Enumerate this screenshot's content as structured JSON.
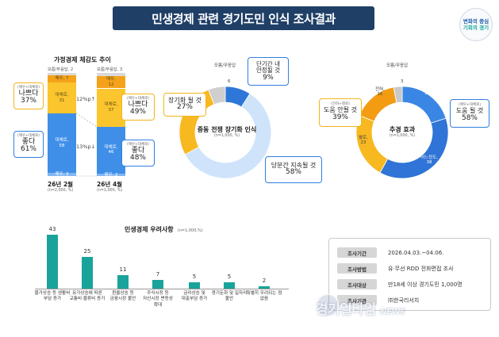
{
  "title": "민생경제 관련 경기도민 인식 조사결과",
  "brand": {
    "line1": "변화의 중심",
    "line2": "기회의 경기"
  },
  "household": {
    "title": "가정경제 체감도 추이",
    "bars": [
      {
        "period": "26년 2월",
        "n": "(n=2,000, %)",
        "top_label": "모름/무응답, 2",
        "segments": [
          {
            "name": "매우, 7",
            "value": 7,
            "color": "#f5a21b"
          },
          {
            "name": "대체로, 31",
            "value": 31,
            "color": "#fbc52e"
          },
          {
            "name": "대체로, 58",
            "value": 58,
            "color": "#3f8fe8"
          },
          {
            "name": "매우, 3",
            "value": 3,
            "color": "#7fb6f2"
          }
        ]
      },
      {
        "period": "26년 4월",
        "n": "(n=1,000, %)",
        "top_label": "모름/무응답, 3",
        "segments": [
          {
            "name": "매우, 12",
            "value": 12,
            "color": "#f5a21b"
          },
          {
            "name": "대체로, 37",
            "value": 37,
            "color": "#fbc52e"
          },
          {
            "name": "대체로, 46",
            "value": 46,
            "color": "#3f8fe8"
          },
          {
            "name": "매우, 2",
            "value": 2,
            "color": "#7fb6f2"
          }
        ]
      }
    ],
    "change_bad": "12%p↑",
    "change_good": "13%p↓",
    "callouts": {
      "feb_bad": {
        "note": "(매우+대체로)",
        "label": "나쁘다",
        "value": "37%"
      },
      "feb_good": {
        "note": "(매우+대체로)",
        "label": "좋다",
        "value": "61%"
      },
      "apr_bad": {
        "note": "(매우+대체로)",
        "label": "나쁘다",
        "value": "49%"
      },
      "apr_good": {
        "note": "(매우+대체로)",
        "label": "좋다",
        "value": "48%"
      }
    }
  },
  "shock": {
    "title": "중동 전쟁 장기화 인식",
    "n": "(n=1,000, %)",
    "dk_label": "모름/무응답",
    "dk_value": "6",
    "callouts": {
      "short": {
        "label": "단기간 내\n안정될 것",
        "value": "9%"
      },
      "long": {
        "label": "장기화 될 것",
        "value": "27%"
      },
      "cont": {
        "label": "당분간 지속될 것",
        "value": "58%"
      }
    }
  },
  "stimulus": {
    "title": "추경 효과",
    "n": "(n=1,000, %)",
    "dk_label": "모름/무응답",
    "dk_value": "3",
    "ring_labels": {
      "much": "매우,\n20",
      "some": "어느정도,\n38",
      "none": "전혀,\n16",
      "little": "별로,\n23"
    },
    "callouts": {
      "no": {
        "note": "(전혀+별로)",
        "label": "도움 안될 것",
        "value": "39%"
      },
      "yes": {
        "note": "(매우+대체로)",
        "label": "도움 될 것",
        "value": "58%"
      }
    }
  },
  "concern": {
    "title": "민생경제 우려사항",
    "n": "(n=1,000,%)"
  },
  "survey": {
    "rows": [
      {
        "tag": "조사기간",
        "value": "2026.04.03.~04.06."
      },
      {
        "tag": "조사방법",
        "value": "유·무선 RDD 전화면접 조사"
      },
      {
        "tag": "조사대상",
        "value": "만18세 이상 경기도민 1,000명"
      },
      {
        "tag": "조사기관",
        "value": "㈜한국리서치"
      }
    ]
  },
  "watermark": {
    "main": "경기일타임",
    "suffix": "NEWS"
  },
  "chart_data": [
    {
      "type": "bar",
      "title": "가정경제 체감도 추이",
      "categories": [
        "26년 2월",
        "26년 4월"
      ],
      "series": [
        {
          "name": "모름/무응답",
          "values": [
            2,
            3
          ]
        },
        {
          "name": "매우",
          "values": [
            7,
            12
          ]
        },
        {
          "name": "대체로",
          "values": [
            31,
            37
          ]
        },
        {
          "name": "대체로",
          "values": [
            58,
            46
          ]
        },
        {
          "name": "매우",
          "values": [
            3,
            2
          ]
        }
      ]
    },
    {
      "type": "pie",
      "title": "중동 전쟁 장기화 인식",
      "labels": [
        "단기간 내 안정될 것",
        "당분간 지속될 것",
        "장기화 될 것",
        "모름/무응답"
      ],
      "values": [
        9,
        58,
        27,
        6
      ],
      "colors": [
        "#2e77d8",
        "#cfe4fb",
        "#f8b820",
        "#cfcfcf"
      ]
    },
    {
      "type": "pie",
      "title": "추경 효과",
      "labels": [
        "매우",
        "어느정도",
        "별로",
        "전혀",
        "모름/무응답"
      ],
      "values": [
        20,
        38,
        23,
        16,
        3
      ],
      "colors": [
        "#3a86e4",
        "#2f74d6",
        "#f8b820",
        "#f39c12",
        "#c9c9c9"
      ]
    },
    {
      "type": "bar",
      "title": "민생경제 우려사항",
      "categories": [
        "물가상승 등 생활비 부담 증가",
        "유가상승에 따른 교통비·물류비 증가",
        "환율상승 등 금융시장 불안",
        "주식시장 등 자산시장 변동성 확대",
        "금리상승 및 대출부담 증가",
        "경기둔화 및 일자리 불안",
        "특별히 우려되는 점 없음"
      ],
      "values": [
        43,
        25,
        11,
        7,
        5,
        5,
        2
      ],
      "color": "#1aa39a"
    }
  ]
}
